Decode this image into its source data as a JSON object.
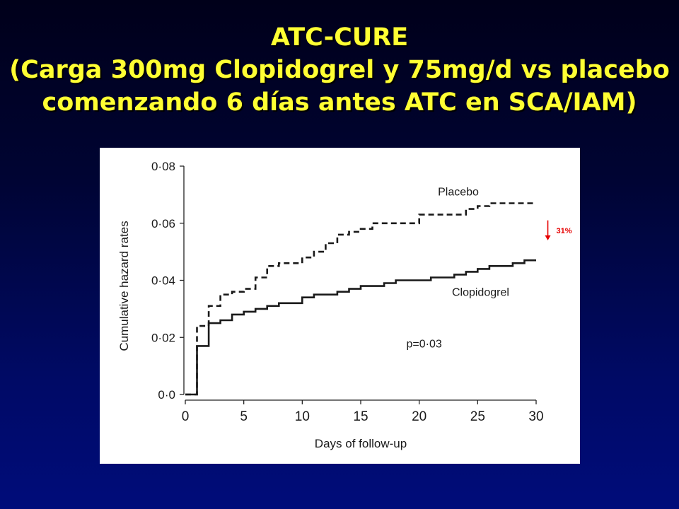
{
  "slide": {
    "title_lines": [
      "ATC-CURE",
      "(Carga 300mg Clopidogrel y 75mg/d vs placebo",
      "comenzando 6 días antes ATC en SCA/IAM)"
    ]
  },
  "colors": {
    "title": "#ffff33",
    "background_top": "#00001a",
    "background_bottom": "#000c7a",
    "chart_background": "#ffffff",
    "series_lines": "#1a1a1a",
    "arrow": "#e60000"
  },
  "chart_data": {
    "type": "line",
    "title": "",
    "xlabel": "Days of follow-up",
    "ylabel": "Cumulative hazard rates",
    "xlim": [
      0,
      30
    ],
    "ylim": [
      0,
      0.08
    ],
    "x_ticks": [
      0,
      5,
      10,
      15,
      20,
      25,
      30
    ],
    "x_tick_labels": [
      "0",
      "5",
      "10",
      "15",
      "20",
      "25",
      "30"
    ],
    "y_ticks": [
      0,
      0.02,
      0.04,
      0.06,
      0.08
    ],
    "y_tick_labels": [
      "0·0",
      "0·02",
      "0·04",
      "0·06",
      "0·08"
    ],
    "grid": false,
    "step": true,
    "series": [
      {
        "name": "Placebo",
        "style": "dashed",
        "points": [
          [
            0,
            0
          ],
          [
            1,
            0
          ],
          [
            1,
            0.024
          ],
          [
            2,
            0.024
          ],
          [
            2,
            0.031
          ],
          [
            3,
            0.031
          ],
          [
            3,
            0.035
          ],
          [
            4,
            0.035
          ],
          [
            4,
            0.036
          ],
          [
            5,
            0.036
          ],
          [
            5,
            0.037
          ],
          [
            6,
            0.037
          ],
          [
            6,
            0.041
          ],
          [
            7,
            0.041
          ],
          [
            7,
            0.045
          ],
          [
            8,
            0.045
          ],
          [
            8,
            0.046
          ],
          [
            10,
            0.046
          ],
          [
            10,
            0.048
          ],
          [
            11,
            0.048
          ],
          [
            11,
            0.05
          ],
          [
            12,
            0.05
          ],
          [
            12,
            0.053
          ],
          [
            13,
            0.053
          ],
          [
            13,
            0.056
          ],
          [
            14,
            0.056
          ],
          [
            14,
            0.057
          ],
          [
            15,
            0.057
          ],
          [
            15,
            0.058
          ],
          [
            16,
            0.058
          ],
          [
            16,
            0.06
          ],
          [
            20,
            0.06
          ],
          [
            20,
            0.063
          ],
          [
            24,
            0.063
          ],
          [
            24,
            0.065
          ],
          [
            25,
            0.065
          ],
          [
            25,
            0.066
          ],
          [
            26,
            0.066
          ],
          [
            26,
            0.067
          ],
          [
            30,
            0.067
          ]
        ]
      },
      {
        "name": "Clopidogrel",
        "style": "solid",
        "points": [
          [
            0,
            0
          ],
          [
            1,
            0
          ],
          [
            1,
            0.017
          ],
          [
            2,
            0.017
          ],
          [
            2,
            0.025
          ],
          [
            3,
            0.025
          ],
          [
            3,
            0.026
          ],
          [
            4,
            0.026
          ],
          [
            4,
            0.028
          ],
          [
            5,
            0.028
          ],
          [
            5,
            0.029
          ],
          [
            6,
            0.029
          ],
          [
            6,
            0.03
          ],
          [
            7,
            0.03
          ],
          [
            7,
            0.031
          ],
          [
            8,
            0.031
          ],
          [
            8,
            0.032
          ],
          [
            10,
            0.032
          ],
          [
            10,
            0.034
          ],
          [
            11,
            0.034
          ],
          [
            11,
            0.035
          ],
          [
            13,
            0.035
          ],
          [
            13,
            0.036
          ],
          [
            14,
            0.036
          ],
          [
            14,
            0.037
          ],
          [
            15,
            0.037
          ],
          [
            15,
            0.038
          ],
          [
            17,
            0.038
          ],
          [
            17,
            0.039
          ],
          [
            18,
            0.039
          ],
          [
            18,
            0.04
          ],
          [
            20,
            0.04
          ],
          [
            20,
            0.04
          ],
          [
            21,
            0.04
          ],
          [
            21,
            0.041
          ],
          [
            23,
            0.041
          ],
          [
            23,
            0.042
          ],
          [
            24,
            0.042
          ],
          [
            24,
            0.043
          ],
          [
            25,
            0.043
          ],
          [
            25,
            0.044
          ],
          [
            26,
            0.044
          ],
          [
            26,
            0.045
          ],
          [
            28,
            0.045
          ],
          [
            28,
            0.046
          ],
          [
            29,
            0.046
          ],
          [
            29,
            0.047
          ],
          [
            30,
            0.047
          ]
        ]
      }
    ],
    "annotations": {
      "placebo_label": "Placebo",
      "clopidogrel_label": "Clopidogrel",
      "p_value": "p=0·03",
      "reduction": "31%",
      "reduction_arrow_from": 0.061,
      "reduction_arrow_to": 0.054,
      "reduction_arrow_x": 31
    }
  }
}
